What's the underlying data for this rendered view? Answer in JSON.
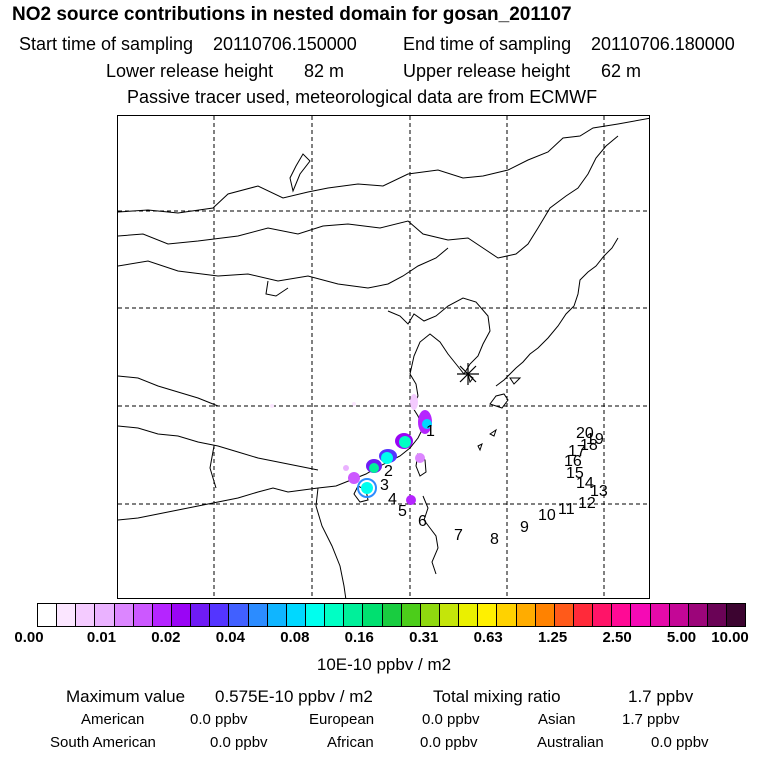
{
  "header": {
    "title": "NO2 source contributions in nested domain for gosan_201107",
    "start_label": "Start time of sampling",
    "start_value": "20110706.150000",
    "end_label": "End time of sampling",
    "end_value": "20110706.180000",
    "lower_label": "Lower release height",
    "lower_value": "82 m",
    "upper_label": "Upper release height",
    "upper_value": "62 m",
    "note": "Passive tracer used, meteorological data are from ECMWF"
  },
  "map": {
    "day_labels": [
      "1",
      "2",
      "3",
      "4",
      "5",
      "6",
      "7",
      "8",
      "9",
      "10",
      "11",
      "12",
      "13",
      "14",
      "15",
      "16",
      "17",
      "18",
      "19",
      "20"
    ],
    "colors": {
      "coast": "#000000",
      "grid": "#000000",
      "marker": "#000000"
    }
  },
  "colorbar": {
    "colors": [
      "#ffffff",
      "#fbe6ff",
      "#f4cbff",
      "#eab2ff",
      "#dc86ff",
      "#cc58ff",
      "#b525ff",
      "#9a05f5",
      "#6f1bf5",
      "#5435ff",
      "#4160ff",
      "#2c8cff",
      "#10b5ff",
      "#00d8ff",
      "#00ffee",
      "#00ffc4",
      "#00f09a",
      "#00e070",
      "#19cc40",
      "#4ccd1a",
      "#8fd80f",
      "#c4e50a",
      "#eaf000",
      "#fff000",
      "#ffd200",
      "#ffac00",
      "#ff8200",
      "#ff5a1a",
      "#ff2a3a",
      "#ff1468",
      "#ff0a95",
      "#f50ab5",
      "#e40aa9",
      "#c40796",
      "#9c057a",
      "#6a0356",
      "#3c0430"
    ],
    "ticks": [
      "0.00",
      "0.01",
      "0.02",
      "0.04",
      "0.08",
      "0.16",
      "0.31",
      "0.63",
      "1.25",
      "2.50",
      "5.00",
      "10.00"
    ],
    "unit": "10E-10 ppbv / m2"
  },
  "summary": {
    "max_label": "Maximum value",
    "max_value": "0.575E-10 ppbv / m2",
    "total_label": "Total mixing ratio",
    "total_value": "1.7 ppbv",
    "regions": [
      {
        "name": "American",
        "value": "0.0 ppbv"
      },
      {
        "name": "European",
        "value": "0.0 ppbv"
      },
      {
        "name": "Asian",
        "value": "1.7 ppbv"
      },
      {
        "name": "South American",
        "value": "0.0 ppbv"
      },
      {
        "name": "African",
        "value": "0.0 ppbv"
      },
      {
        "name": "Australian",
        "value": "0.0 ppbv"
      }
    ]
  }
}
